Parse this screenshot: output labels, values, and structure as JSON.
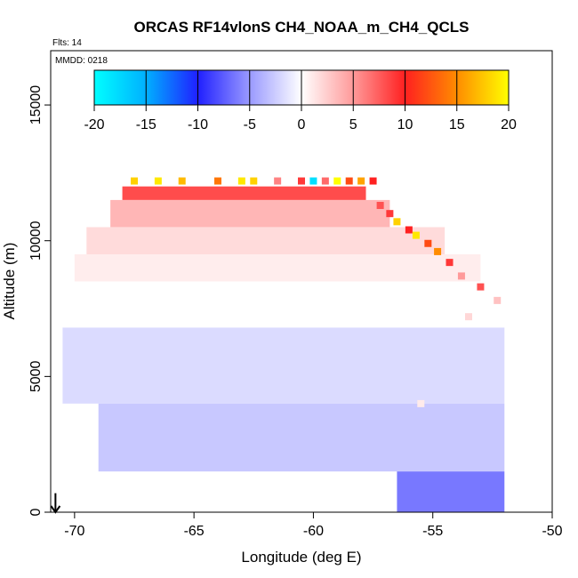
{
  "chart_data": {
    "type": "heatmap",
    "title": "ORCAS RF14vlonS CH4_NOAA_m_CH4_QCLS",
    "flights_label": "Flts: 14",
    "date_label": "MMDD: 0218",
    "xlabel": "Longitude (deg E)",
    "ylabel": "Altitude (m)",
    "xlim": [
      -71,
      -50
    ],
    "ylim": [
      0,
      17000
    ],
    "xticks": [
      -70,
      -65,
      -60,
      -55,
      -50
    ],
    "xtick_labels": [
      "-70",
      "-65",
      "-60",
      "-55",
      "-50"
    ],
    "yticks": [
      0,
      5000,
      10000,
      15000
    ],
    "ytick_labels": [
      "0",
      "5000",
      "10000",
      "15000"
    ],
    "colorbar": {
      "range": [
        -20,
        20
      ],
      "ticks": [
        -20,
        -15,
        -10,
        -5,
        0,
        5,
        10,
        15,
        20
      ],
      "tick_labels": [
        "-20",
        "-15",
        "-10",
        "-5",
        "0",
        "5",
        "10",
        "15",
        "20"
      ],
      "stops": [
        {
          "v": -20,
          "color": "#00ffff"
        },
        {
          "v": -15,
          "color": "#00b0ff"
        },
        {
          "v": -10,
          "color": "#2020ff"
        },
        {
          "v": -5,
          "color": "#9a9aff"
        },
        {
          "v": 0,
          "color": "#ffffff"
        },
        {
          "v": 5,
          "color": "#ff9a9a"
        },
        {
          "v": 10,
          "color": "#ff2020"
        },
        {
          "v": 15,
          "color": "#ff8c00"
        },
        {
          "v": 20,
          "color": "#ffff00"
        }
      ]
    },
    "bands": [
      {
        "name": "upper-top",
        "lon0": -68.0,
        "lon1": -57.8,
        "alt_top": 12000,
        "alt_bot": 11500,
        "value": 9
      },
      {
        "name": "upper-red",
        "lon0": -68.5,
        "lon1": -56.8,
        "alt_top": 11500,
        "alt_bot": 10500,
        "value": 4
      },
      {
        "name": "upper-pink",
        "lon0": -69.5,
        "lon1": -54.5,
        "alt_top": 10500,
        "alt_bot": 9500,
        "value": 2
      },
      {
        "name": "mid-faint",
        "lon0": -70.0,
        "lon1": -53.0,
        "alt_top": 9500,
        "alt_bot": 8500,
        "value": 1
      },
      {
        "name": "low-blue-1",
        "lon0": -70.5,
        "lon1": -52.0,
        "alt_top": 6800,
        "alt_bot": 4000,
        "value": -2
      },
      {
        "name": "low-blue-2",
        "lon0": -69.0,
        "lon1": -52.0,
        "alt_top": 4000,
        "alt_bot": 1500,
        "value": -3
      },
      {
        "name": "bottom-blue",
        "lon0": -56.5,
        "lon1": -52.0,
        "alt_top": 1500,
        "alt_bot": 0,
        "value": -7
      }
    ],
    "edge_cells": [
      {
        "lon": -57.2,
        "alt": 11300,
        "value": 8
      },
      {
        "lon": -56.8,
        "alt": 11000,
        "value": 9
      },
      {
        "lon": -56.5,
        "alt": 10700,
        "value": 18
      },
      {
        "lon": -56.0,
        "alt": 10400,
        "value": 10
      },
      {
        "lon": -55.7,
        "alt": 10200,
        "value": 19
      },
      {
        "lon": -55.2,
        "alt": 9900,
        "value": 12
      },
      {
        "lon": -54.8,
        "alt": 9600,
        "value": 15
      },
      {
        "lon": -54.3,
        "alt": 9200,
        "value": 9
      },
      {
        "lon": -53.8,
        "alt": 8700,
        "value": 5
      },
      {
        "lon": -53.0,
        "alt": 8300,
        "value": 8
      },
      {
        "lon": -52.3,
        "alt": 7800,
        "value": 3
      },
      {
        "lon": -67.5,
        "alt": 12200,
        "value": 18
      },
      {
        "lon": -66.5,
        "alt": 12200,
        "value": 19
      },
      {
        "lon": -65.5,
        "alt": 12200,
        "value": 17
      },
      {
        "lon": -64.0,
        "alt": 12200,
        "value": 14
      },
      {
        "lon": -63.0,
        "alt": 12200,
        "value": 19
      },
      {
        "lon": -62.5,
        "alt": 12200,
        "value": 18
      },
      {
        "lon": -61.5,
        "alt": 12200,
        "value": 6
      },
      {
        "lon": -60.5,
        "alt": 12200,
        "value": 9
      },
      {
        "lon": -60.0,
        "alt": 12200,
        "value": -18
      },
      {
        "lon": -59.5,
        "alt": 12200,
        "value": 7
      },
      {
        "lon": -59.0,
        "alt": 12200,
        "value": 20
      },
      {
        "lon": -58.5,
        "alt": 12200,
        "value": 12
      },
      {
        "lon": -58.0,
        "alt": 12200,
        "value": 16
      },
      {
        "lon": -57.5,
        "alt": 12200,
        "value": 10
      },
      {
        "lon": -55.5,
        "alt": 4000,
        "value": 1
      },
      {
        "lon": -53.5,
        "alt": 7200,
        "value": 2
      }
    ],
    "arrow": {
      "lon": -70.8,
      "alt_start": 700,
      "alt_end": 0
    }
  }
}
